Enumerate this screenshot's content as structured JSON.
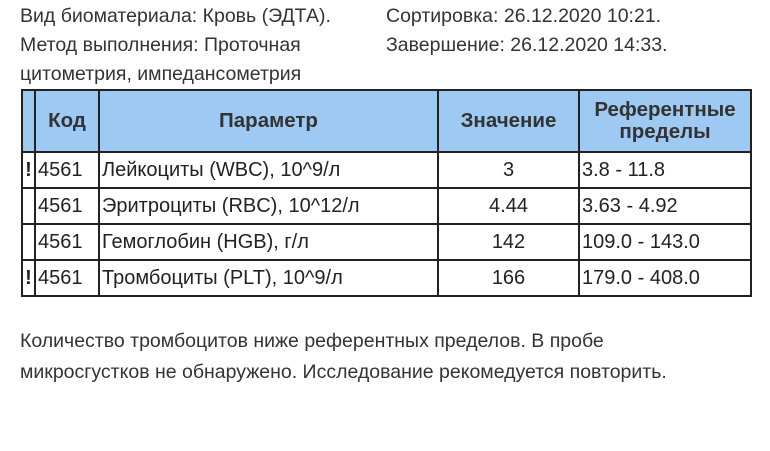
{
  "meta": {
    "biomaterial": "Вид биоматериала: Кровь (ЭДТА).",
    "method": "Метод выполнения: Проточная цитометрия, импедансометрия",
    "sorting": "Сортировка: 26.12.2020 10:21.",
    "completion": "Завершение: 26.12.2020 14:33."
  },
  "table": {
    "headers": {
      "flag": "",
      "code": "Код",
      "param": "Параметр",
      "value": "Значение",
      "ref": "Референтные пределы"
    },
    "rows": [
      {
        "flag": "!",
        "code": "4561",
        "param": "Лейкоциты (WBC), 10^9/л",
        "value": "3",
        "ref": "3.8 - 11.8"
      },
      {
        "flag": "",
        "code": "4561",
        "param": "Эритроциты (RBC), 10^12/л",
        "value": "4.44",
        "ref": "3.63 - 4.92"
      },
      {
        "flag": "",
        "code": "4561",
        "param": "Гемоглобин (HGB), г/л",
        "value": "142",
        "ref": "109.0 - 143.0"
      },
      {
        "flag": "!",
        "code": "4561",
        "param": "Тромбоциты (PLT), 10^9/л",
        "value": "166",
        "ref": "179.0 - 408.0"
      }
    ]
  },
  "note": "Количество тромбоцитов ниже референтных пределов. В пробе микросгустков не обнаружено. Исследование рекомедуется повторить.",
  "colors": {
    "header_bg": "#9ec9f3"
  }
}
